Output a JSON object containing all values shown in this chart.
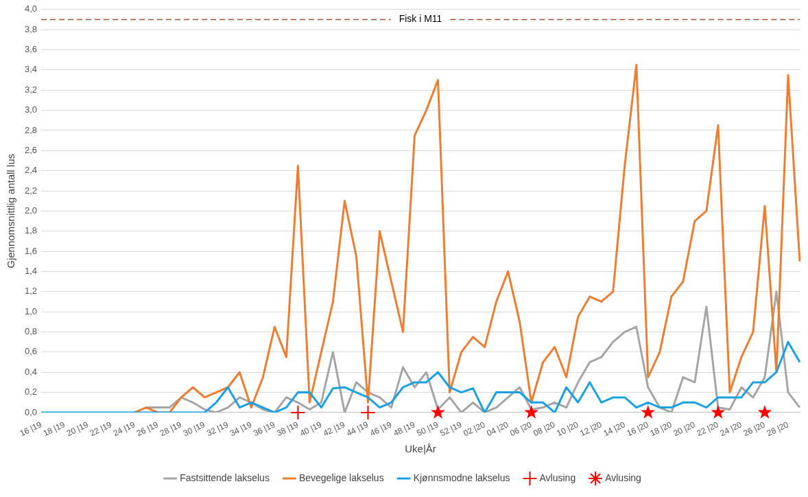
{
  "chart_data": {
    "type": "line",
    "xlabel": "Uke|År",
    "ylabel": "Gjennomsnittlig antall lus",
    "categories": [
      "16 |19",
      null,
      "18 |19",
      null,
      "20 |19",
      null,
      "22 |19",
      null,
      "24 |19",
      null,
      "26 |19",
      null,
      "28 |19",
      null,
      "30 |19",
      null,
      "32 |19",
      null,
      "34 |19",
      null,
      "36 |19",
      null,
      "38 |19",
      null,
      "40 |19",
      null,
      "42 |19",
      null,
      "44 |19",
      null,
      "46 |19",
      null,
      "48 |19",
      null,
      "50 |19",
      null,
      "52 |19",
      null,
      "02 |20",
      null,
      "04 |20",
      null,
      "06 |20",
      null,
      "08 |20",
      null,
      "10 |20",
      null,
      "12 |20",
      null,
      "14 |20",
      null,
      "16 |20",
      null,
      "18 |20",
      null,
      "20 |20",
      null,
      "22 |20",
      null,
      "24 |20",
      null,
      "26 |20",
      null,
      "28 |20",
      null
    ],
    "series": [
      {
        "name": "Fastsittende lakselus",
        "color": "#a5a5a5",
        "values": [
          null,
          null,
          null,
          null,
          null,
          null,
          null,
          null,
          null,
          0.05,
          0.05,
          0.05,
          0.15,
          0.1,
          0.03,
          0,
          0.05,
          0.15,
          0.1,
          0.03,
          0,
          0.15,
          0.1,
          0.03,
          0.1,
          0.6,
          0,
          0.3,
          0.2,
          0.15,
          0.05,
          0.45,
          0.25,
          0.4,
          0.03,
          0.15,
          0,
          0.1,
          0,
          0.05,
          0.15,
          0.25,
          0.03,
          0.05,
          0.1,
          0.05,
          0.3,
          0.5,
          0.55,
          0.7,
          0.8,
          0.85,
          0.25,
          0.05,
          0,
          0.35,
          0.3,
          1.05,
          0.05,
          0.03,
          0.25,
          0.15,
          0.35,
          1.2,
          0.2,
          0.05
        ]
      },
      {
        "name": "Bevegelige lakselus",
        "color": "#ed7d31",
        "values": [
          null,
          null,
          null,
          null,
          null,
          null,
          null,
          null,
          0,
          0.05,
          0,
          0,
          0.15,
          0.25,
          0.15,
          0.2,
          0.25,
          0.4,
          0.05,
          0.35,
          0.85,
          0.55,
          2.45,
          0.1,
          0.6,
          1.1,
          2.1,
          1.55,
          0.1,
          1.8,
          1.3,
          0.8,
          2.75,
          3.0,
          3.3,
          0.2,
          0.6,
          0.75,
          0.65,
          1.1,
          1.4,
          0.9,
          0.1,
          0.5,
          0.65,
          0.35,
          0.95,
          1.15,
          1.1,
          1.2,
          2.45,
          3.45,
          0.35,
          0.6,
          1.15,
          1.3,
          1.9,
          2.0,
          2.85,
          0.2,
          0.55,
          0.8,
          2.05,
          0.4,
          3.35,
          1.5
        ]
      },
      {
        "name": "Kjønnsmodne lakselus",
        "color": "#1ba1e2",
        "values": [
          0,
          0,
          0,
          0,
          0,
          0,
          0,
          0,
          0,
          0,
          0,
          0,
          0,
          0,
          0,
          0.1,
          0.25,
          0.05,
          0.1,
          0.05,
          0,
          0.05,
          0.2,
          0.2,
          0.05,
          0.24,
          0.25,
          0.2,
          0.15,
          0.05,
          0.1,
          0.25,
          0.3,
          0.3,
          0.4,
          0.25,
          0.2,
          0.24,
          0,
          0.2,
          0.2,
          0.2,
          0.1,
          0.1,
          0,
          0.25,
          0.1,
          0.3,
          0.1,
          0.15,
          0.15,
          0.05,
          0.1,
          0.05,
          0.05,
          0.1,
          0.1,
          0.05,
          0.15,
          0.15,
          0.15,
          0.3,
          0.3,
          0.4,
          0.7,
          0.5
        ]
      },
      {
        "name": "Avlusing",
        "type": "scatter",
        "marker": "cross",
        "color": "#ff0000",
        "x": [
          "38 |19",
          "44 |19"
        ],
        "values": [
          0,
          0
        ]
      },
      {
        "name": "Avlusing",
        "type": "scatter",
        "marker": "star",
        "color": "#ff0000",
        "x": [
          "50 |19",
          "06 |20",
          "16 |20",
          "22 |20",
          "26 |20"
        ],
        "values": [
          0,
          0,
          0,
          0,
          0
        ]
      }
    ],
    "ylim": [
      0,
      4
    ],
    "yticks": [
      {
        "value": 0,
        "label": "0,0"
      },
      {
        "value": 0.2,
        "label": "0,2"
      },
      {
        "value": 0.4,
        "label": "0,4"
      },
      {
        "value": 0.6,
        "label": "0,6"
      },
      {
        "value": 0.8,
        "label": "0,8"
      },
      {
        "value": 1,
        "label": "1,0"
      },
      {
        "value": 1.2,
        "label": "1,2"
      },
      {
        "value": 1.4,
        "label": "1,4"
      },
      {
        "value": 1.6,
        "label": "1,6"
      },
      {
        "value": 1.8,
        "label": "1,8"
      },
      {
        "value": 2,
        "label": "2,0"
      },
      {
        "value": 2.2,
        "label": "2,2"
      },
      {
        "value": 2.4,
        "label": "2,4"
      },
      {
        "value": 2.6,
        "label": "2,6"
      },
      {
        "value": 2.8,
        "label": "2,8"
      },
      {
        "value": 3,
        "label": "3,0"
      },
      {
        "value": 3.2,
        "label": "3,2"
      },
      {
        "value": 3.4,
        "label": "3,4"
      },
      {
        "value": 3.6,
        "label": "3,6"
      },
      {
        "value": 3.8,
        "label": "3,8"
      },
      {
        "value": 4,
        "label": "4,0"
      }
    ],
    "ref_lines": [
      {
        "axis": "y",
        "value": 3.9,
        "label": "Fisk i M11",
        "color": "#a0522d",
        "line_style": "dashed"
      }
    ],
    "grid": "y",
    "legend": "bottom",
    "marker": "none",
    "line_style": "solid"
  }
}
